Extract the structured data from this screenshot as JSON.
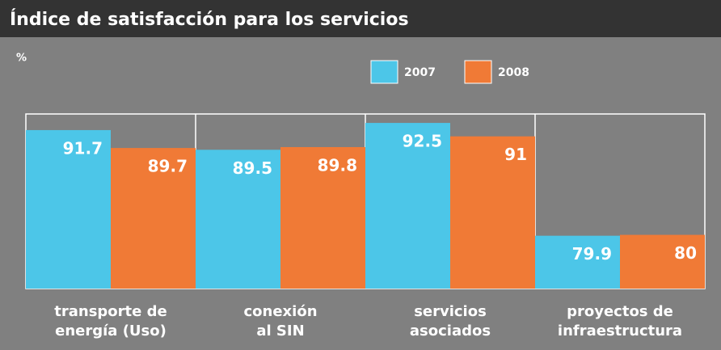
{
  "chart_data": {
    "type": "bar",
    "title": "Índice de satisfacción para los servicios",
    "ylabel": "%",
    "categories": [
      [
        "transporte de",
        "energía (Uso)"
      ],
      [
        "conexión",
        "al SIN"
      ],
      [
        "servicios",
        "asociados"
      ],
      [
        "proyectos de",
        "infraestructura"
      ]
    ],
    "series": [
      {
        "name": "2007",
        "color": "#4cc6e8",
        "values": [
          91.7,
          89.5,
          92.5,
          79.9
        ]
      },
      {
        "name": "2008",
        "color": "#f07a36",
        "values": [
          89.7,
          89.8,
          91,
          80
        ]
      }
    ],
    "ylim": [
      74,
      93.5
    ],
    "legend": "top"
  }
}
